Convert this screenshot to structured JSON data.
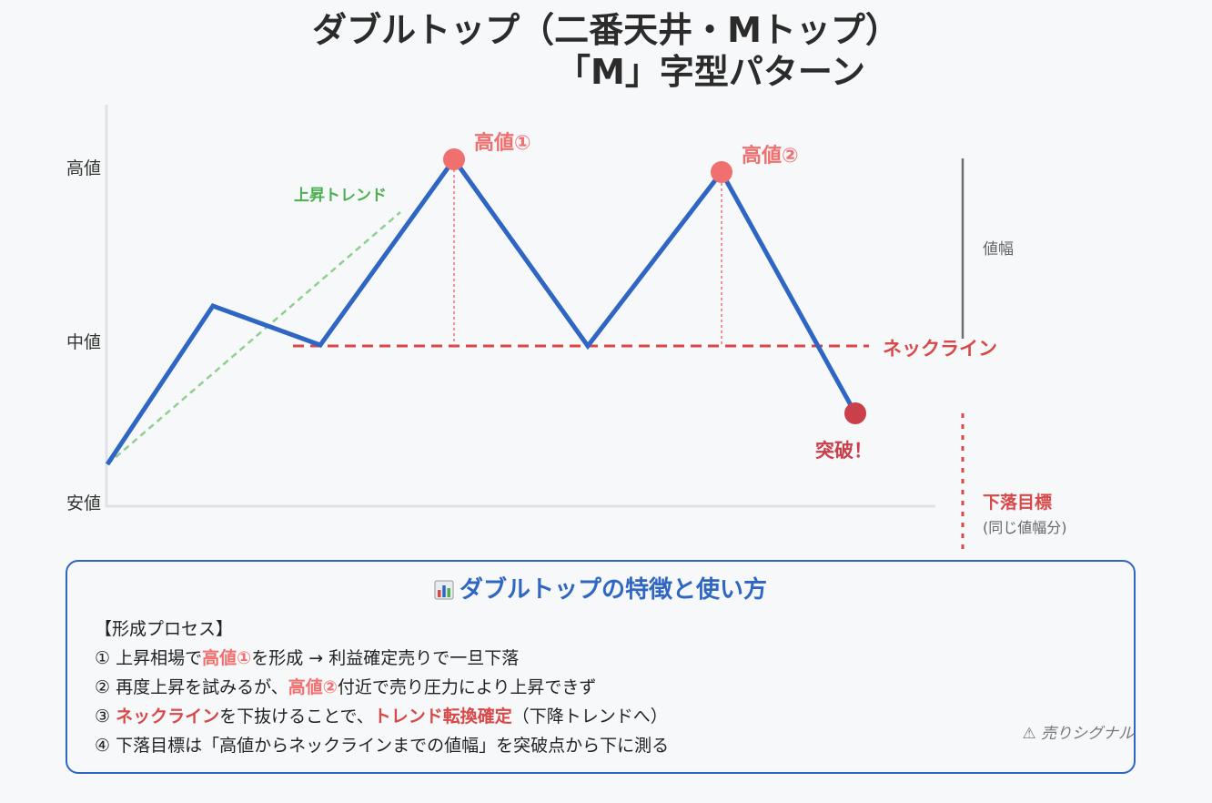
{
  "title": {
    "line1": "ダブルトップ（二番天井・Mトップ）",
    "line2": "「M」字型パターン"
  },
  "y_axis": {
    "high": "高値",
    "mid": "中値",
    "low": "安値"
  },
  "labels": {
    "peak1": "高値①",
    "peak2": "高値②",
    "uptrend": "上昇トレンド",
    "neckline": "ネックライン",
    "breakout": "突破！",
    "price_range": "値幅",
    "target": "下落目標",
    "target_note": "(同じ値幅分)"
  },
  "colors": {
    "price_line": "#2f66c4",
    "peak": "#f07070",
    "neckline": "#d94848",
    "breakout": "#c9404a",
    "uptrend": "#8fcf8f"
  },
  "panel": {
    "icon": "bar-chart-icon",
    "title": "ダブルトップの特徴と使い方",
    "header": "【形成プロセス】",
    "step1": {
      "num": "①",
      "pre": "上昇相場で",
      "hl": "高値①",
      "post": "を形成 → 利益確定売りで一旦下落"
    },
    "step2": {
      "num": "②",
      "pre": "再度上昇を試みるが、",
      "hl": "高値②",
      "post": "付近で売り圧力により上昇できず"
    },
    "step3": {
      "num": "③",
      "hl1": "ネックライン",
      "mid": "を下抜けることで、",
      "hl2": "トレンド転換確定",
      "post": "（下降トレンドへ）"
    },
    "step4": {
      "num": "④",
      "text": "下落目標は「高値からネックラインまでの値幅」を突破点から下に測る"
    },
    "signal": "⚠ 売りシグナル"
  }
}
